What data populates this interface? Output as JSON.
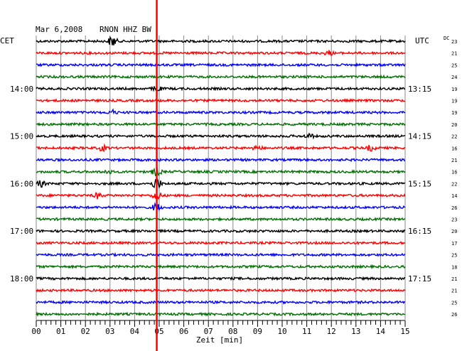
{
  "header": {
    "date": "Mar 6,2008",
    "station": "RNON HHZ BW",
    "left_zone": "CET",
    "right_zone": "UTC",
    "dc_label": "DC"
  },
  "chart_data": {
    "type": "line",
    "title": "Mar 6,2008   RNON HHZ BW",
    "xlabel": "Zeit [min]",
    "xlim": [
      0,
      15
    ],
    "x_ticks": [
      "00",
      "01",
      "02",
      "03",
      "04",
      "05",
      "06",
      "07",
      "08",
      "09",
      "10",
      "11",
      "12",
      "13",
      "14",
      "15"
    ],
    "left_time_labels": [
      {
        "row": 4,
        "text": "14:00"
      },
      {
        "row": 8,
        "text": "15:00"
      },
      {
        "row": 12,
        "text": "16:00"
      },
      {
        "row": 16,
        "text": "17:00"
      },
      {
        "row": 20,
        "text": "18:00"
      }
    ],
    "right_time_labels": [
      {
        "row": 4,
        "text": "13:15"
      },
      {
        "row": 8,
        "text": "14:15"
      },
      {
        "row": 12,
        "text": "15:15"
      },
      {
        "row": 16,
        "text": "16:15"
      },
      {
        "row": 20,
        "text": "17:15"
      }
    ],
    "dc_offsets": [
      "23",
      "21",
      "25",
      "24",
      "19",
      "19",
      "19",
      "20",
      "22",
      "16",
      "21",
      "16",
      "22",
      "14",
      "26",
      "23",
      "20",
      "17",
      "25",
      "18",
      "21",
      "21",
      "25",
      "26"
    ],
    "trace_colors": [
      "#000000",
      "#ff0000",
      "#0000ff",
      "#007000"
    ],
    "event_marker": {
      "minute": 4.9,
      "color": "#ff0000"
    },
    "bursts": [
      {
        "row": 0,
        "minute": 3.1,
        "amp": 8
      },
      {
        "row": 1,
        "minute": 11.9,
        "amp": 3
      },
      {
        "row": 4,
        "minute": 4.9,
        "amp": 4
      },
      {
        "row": 6,
        "minute": 3.1,
        "amp": 3
      },
      {
        "row": 8,
        "minute": 11.1,
        "amp": 3
      },
      {
        "row": 9,
        "minute": 2.7,
        "amp": 4
      },
      {
        "row": 9,
        "minute": 9.0,
        "amp": 3
      },
      {
        "row": 9,
        "minute": 13.6,
        "amp": 4
      },
      {
        "row": 11,
        "minute": 2.9,
        "amp": 3
      },
      {
        "row": 11,
        "minute": 4.9,
        "amp": 6
      },
      {
        "row": 12,
        "minute": 0.2,
        "amp": 4
      },
      {
        "row": 12,
        "minute": 4.9,
        "amp": 9
      },
      {
        "row": 13,
        "minute": 2.5,
        "amp": 4
      },
      {
        "row": 13,
        "minute": 4.9,
        "amp": 7
      },
      {
        "row": 14,
        "minute": 4.9,
        "amp": 6
      }
    ]
  }
}
